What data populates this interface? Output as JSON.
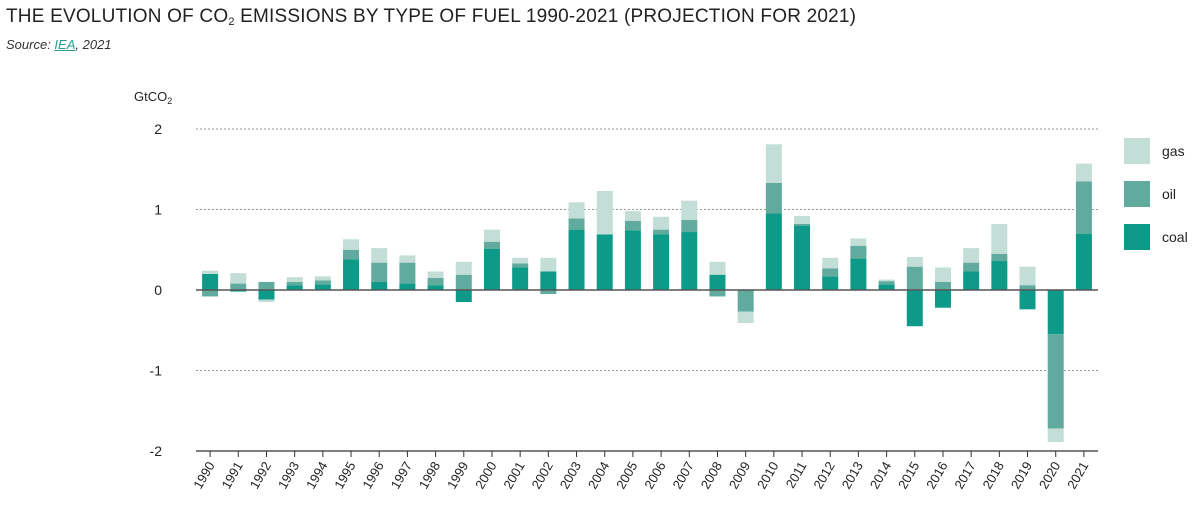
{
  "header": {
    "title_pre": "THE EVOLUTION OF CO",
    "title_sub": "2",
    "title_post": " EMISSIONS BY TYPE OF FUEL 1990-2021 (PROJECTION FOR 2021)",
    "source_prefix": "Source: ",
    "source_link": "IEA",
    "source_suffix": ", 2021"
  },
  "colors": {
    "coal": "#0e9a88",
    "oil": "#60ab9d",
    "gas": "#c3ded6",
    "grid": "#9a9a9a",
    "axis": "#333333"
  },
  "chart_data": {
    "type": "bar",
    "stacked": true,
    "ylabel_pre": "GtCO",
    "ylabel_sub": "2",
    "ylim": [
      -2,
      2
    ],
    "yticks": [
      2,
      1,
      0,
      -1,
      -2
    ],
    "grid": true,
    "legend_position": "right",
    "categories": [
      "1990",
      "1991",
      "1992",
      "1993",
      "1994",
      "1995",
      "1996",
      "1997",
      "1998",
      "1999",
      "2000",
      "2001",
      "2002",
      "2003",
      "2004",
      "2005",
      "2006",
      "2007",
      "2008",
      "2009",
      "2010",
      "2011",
      "2012",
      "2013",
      "2014",
      "2015",
      "2016",
      "2017",
      "2018",
      "2019",
      "2020",
      "2021"
    ],
    "series": [
      {
        "name": "coal",
        "key": "coal",
        "values": [
          0.2,
          -0.02,
          -0.12,
          0.06,
          0.07,
          0.38,
          0.1,
          0.08,
          0.06,
          -0.15,
          0.51,
          0.28,
          0.23,
          0.75,
          0.69,
          0.74,
          0.69,
          0.72,
          0.19,
          0.0,
          0.95,
          0.8,
          0.17,
          0.39,
          0.07,
          -0.45,
          -0.22,
          0.23,
          0.36,
          -0.24,
          -0.55,
          0.7
        ]
      },
      {
        "name": "oil",
        "key": "oil",
        "values": [
          -0.08,
          0.08,
          0.1,
          0.04,
          0.05,
          0.12,
          0.24,
          0.26,
          0.09,
          0.19,
          0.09,
          0.05,
          -0.05,
          0.14,
          0.0,
          0.12,
          0.06,
          0.15,
          -0.08,
          -0.27,
          0.38,
          0.02,
          0.1,
          0.16,
          0.04,
          0.29,
          0.1,
          0.11,
          0.09,
          0.06,
          -1.17,
          0.65
        ]
      },
      {
        "name": "gas",
        "key": "gas",
        "values": [
          0.04,
          0.13,
          -0.03,
          0.06,
          0.05,
          0.13,
          0.18,
          0.09,
          0.08,
          0.16,
          0.15,
          0.07,
          0.17,
          0.2,
          0.54,
          0.12,
          0.16,
          0.24,
          0.16,
          -0.14,
          0.48,
          0.1,
          0.13,
          0.09,
          0.02,
          0.12,
          0.18,
          0.18,
          0.37,
          0.23,
          -0.17,
          0.22
        ]
      }
    ]
  }
}
